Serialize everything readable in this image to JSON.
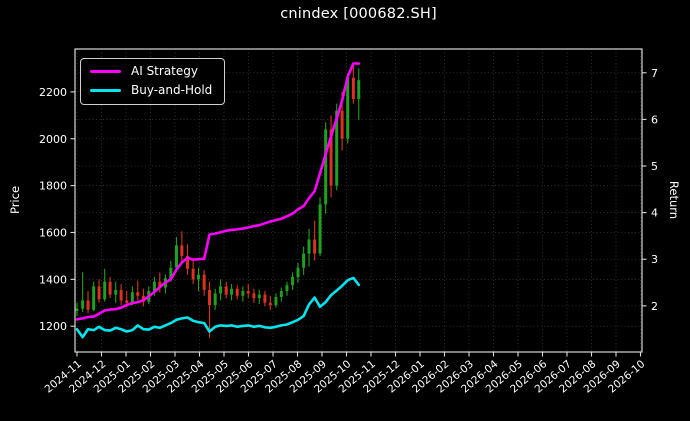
{
  "title": "cnindex [000682.SH]",
  "axes": {
    "left_label": "Price",
    "right_label": "Return"
  },
  "legend": {
    "position": "upper-left",
    "items": [
      {
        "label": "AI Strategy",
        "color": "#ff00ff"
      },
      {
        "label": "Buy-and-Hold",
        "color": "#00e5ee"
      }
    ]
  },
  "chart_data": {
    "type": "candlestick+line",
    "title": "cnindex [000682.SH]",
    "xlabel": "",
    "ylabel_left": "Price",
    "ylabel_right": "Return",
    "grid": true,
    "background": "dark",
    "x_tick_labels": [
      "2024-11",
      "2024-12",
      "2025-01",
      "2025-02",
      "2025-03",
      "2025-04",
      "2025-05",
      "2025-06",
      "2025-07",
      "2025-08",
      "2025-09",
      "2025-10",
      "2025-11",
      "2025-12",
      "2026-01",
      "2026-02",
      "2026-03",
      "2026-04",
      "2026-05",
      "2026-06",
      "2026-07",
      "2026-08",
      "2026-09",
      "2026-10"
    ],
    "price_ticks": [
      1200,
      1400,
      1600,
      1800,
      2000,
      2200
    ],
    "return_ticks": [
      2,
      3,
      4,
      5,
      6,
      7
    ],
    "price_ylim": [
      1090,
      2383
    ],
    "return_ylim": [
      1.01,
      7.51
    ],
    "x_months": [
      0.0,
      0.23,
      0.45,
      0.68,
      0.9,
      1.13,
      1.35,
      1.58,
      1.8,
      2.03,
      2.26,
      2.48,
      2.71,
      2.93,
      3.16,
      3.38,
      3.61,
      3.83,
      4.06,
      4.28,
      4.51,
      4.74,
      4.96,
      5.19,
      5.41,
      5.64,
      5.86,
      6.09,
      6.31,
      6.54,
      6.77,
      6.99,
      7.22,
      7.44,
      7.67,
      7.89,
      8.12,
      8.34,
      8.57,
      8.8,
      9.02,
      9.25,
      9.47,
      9.7,
      9.92,
      10.15,
      10.37,
      10.6,
      10.82,
      11.05,
      11.28,
      11.5
    ],
    "candles_ohlc_price": [
      [
        1265,
        1300,
        1245,
        1275
      ],
      [
        1275,
        1430,
        1260,
        1310
      ],
      [
        1310,
        1350,
        1255,
        1270
      ],
      [
        1270,
        1390,
        1265,
        1370
      ],
      [
        1370,
        1400,
        1300,
        1315
      ],
      [
        1315,
        1445,
        1305,
        1390
      ],
      [
        1390,
        1410,
        1320,
        1335
      ],
      [
        1335,
        1390,
        1300,
        1355
      ],
      [
        1355,
        1380,
        1290,
        1310
      ],
      [
        1310,
        1350,
        1280,
        1300
      ],
      [
        1300,
        1370,
        1290,
        1345
      ],
      [
        1345,
        1395,
        1310,
        1330
      ],
      [
        1330,
        1360,
        1285,
        1305
      ],
      [
        1305,
        1370,
        1295,
        1350
      ],
      [
        1350,
        1410,
        1330,
        1390
      ],
      [
        1390,
        1430,
        1345,
        1365
      ],
      [
        1365,
        1420,
        1340,
        1405
      ],
      [
        1405,
        1480,
        1390,
        1450
      ],
      [
        1450,
        1580,
        1430,
        1545
      ],
      [
        1545,
        1605,
        1470,
        1500
      ],
      [
        1500,
        1550,
        1420,
        1445
      ],
      [
        1445,
        1490,
        1380,
        1400
      ],
      [
        1400,
        1450,
        1350,
        1420
      ],
      [
        1420,
        1440,
        1330,
        1355
      ],
      [
        1355,
        1390,
        1150,
        1290
      ],
      [
        1290,
        1360,
        1270,
        1340
      ],
      [
        1340,
        1400,
        1310,
        1370
      ],
      [
        1370,
        1390,
        1320,
        1335
      ],
      [
        1335,
        1380,
        1310,
        1360
      ],
      [
        1360,
        1375,
        1315,
        1330
      ],
      [
        1330,
        1370,
        1305,
        1350
      ],
      [
        1350,
        1380,
        1320,
        1340
      ],
      [
        1340,
        1360,
        1300,
        1320
      ],
      [
        1320,
        1355,
        1295,
        1335
      ],
      [
        1335,
        1350,
        1285,
        1300
      ],
      [
        1300,
        1330,
        1270,
        1290
      ],
      [
        1290,
        1340,
        1280,
        1325
      ],
      [
        1325,
        1365,
        1305,
        1350
      ],
      [
        1350,
        1390,
        1330,
        1375
      ],
      [
        1375,
        1430,
        1355,
        1410
      ],
      [
        1410,
        1470,
        1385,
        1450
      ],
      [
        1450,
        1540,
        1420,
        1510
      ],
      [
        1510,
        1615,
        1455,
        1570
      ],
      [
        1570,
        1650,
        1480,
        1510
      ],
      [
        1510,
        1750,
        1500,
        1720
      ],
      [
        1720,
        2070,
        1680,
        2040
      ],
      [
        2040,
        2100,
        1750,
        1800
      ],
      [
        1800,
        2150,
        1780,
        2120
      ],
      [
        2120,
        2200,
        1950,
        2000
      ],
      [
        2000,
        2280,
        1980,
        2260
      ],
      [
        2260,
        2325,
        2150,
        2170
      ],
      [
        2170,
        2300,
        2080,
        2250
      ]
    ],
    "series": [
      {
        "name": "AI Strategy",
        "axis": "right",
        "color": "#ff00ff",
        "values": [
          1.71,
          1.73,
          1.76,
          1.77,
          1.83,
          1.9,
          1.92,
          1.93,
          1.96,
          2.02,
          2.06,
          2.08,
          2.12,
          2.2,
          2.3,
          2.4,
          2.5,
          2.57,
          2.78,
          2.93,
          3.03,
          2.99,
          3.0,
          3.01,
          3.53,
          3.55,
          3.58,
          3.61,
          3.63,
          3.64,
          3.66,
          3.68,
          3.71,
          3.73,
          3.77,
          3.81,
          3.84,
          3.87,
          3.92,
          3.98,
          4.07,
          4.14,
          4.31,
          4.46,
          4.84,
          5.26,
          5.64,
          6.02,
          6.4,
          6.92,
          7.2,
          7.2
        ]
      },
      {
        "name": "Buy-and-Hold",
        "axis": "right",
        "color": "#00e5ee",
        "values": [
          1.5,
          1.33,
          1.5,
          1.48,
          1.55,
          1.48,
          1.47,
          1.53,
          1.5,
          1.45,
          1.48,
          1.58,
          1.5,
          1.49,
          1.55,
          1.53,
          1.58,
          1.63,
          1.7,
          1.73,
          1.75,
          1.68,
          1.65,
          1.63,
          1.45,
          1.55,
          1.58,
          1.57,
          1.58,
          1.55,
          1.57,
          1.58,
          1.55,
          1.57,
          1.54,
          1.53,
          1.55,
          1.58,
          1.6,
          1.65,
          1.7,
          1.78,
          2.03,
          2.18,
          1.98,
          2.08,
          2.23,
          2.33,
          2.43,
          2.55,
          2.6,
          2.45
        ]
      }
    ],
    "colors": {
      "up": "#1fa01f",
      "down": "#dd3222",
      "grid": "#3a3a3a",
      "spine": "#d9d9d9",
      "text": "#ffffff",
      "background": "#000000"
    }
  }
}
